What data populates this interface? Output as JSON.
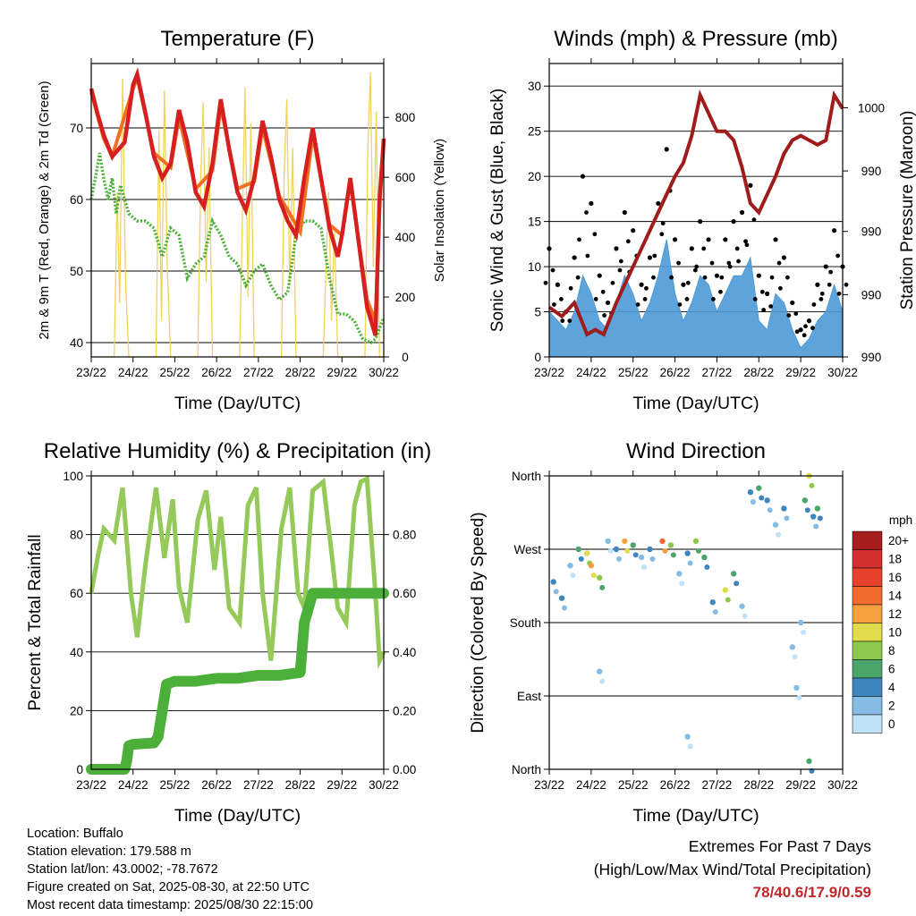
{
  "x_ticks": [
    "23/22",
    "24/22",
    "25/22",
    "26/22",
    "27/22",
    "28/22",
    "29/22",
    "30/22"
  ],
  "x_label": "Time (Day/UTC)",
  "chart_data": [
    {
      "id": "temperature",
      "type": "line",
      "title": "Temperature (F)",
      "ylabel": "2m & 9m T (Red, Orange) & 2m Td (Green)",
      "ylabel_right": "Solar Insolation (Yellow)",
      "ylim": [
        38,
        79
      ],
      "yticks": [
        40,
        50,
        60,
        70
      ],
      "ylim_right": [
        0,
        980
      ],
      "yticks_right": [
        0,
        200,
        400,
        600,
        800
      ],
      "series": [
        {
          "key": "T2m",
          "color": "#d62020",
          "x": [
            0,
            0.15,
            0.3,
            0.5,
            0.8,
            1.0,
            1.1,
            1.3,
            1.5,
            1.7,
            1.9,
            2.1,
            2.3,
            2.5,
            2.7,
            2.9,
            3.1,
            3.3,
            3.5,
            3.7,
            3.9,
            4.1,
            4.3,
            4.5,
            4.7,
            4.9,
            5.1,
            5.3,
            5.5,
            5.7,
            5.9,
            6.0,
            6.2,
            6.4,
            6.6,
            6.8,
            6.9,
            7.0
          ],
          "y": [
            75.5,
            72,
            69,
            66,
            68,
            76,
            77.5,
            72,
            66,
            63,
            65,
            72.5,
            68,
            61,
            59,
            65,
            74,
            67,
            61,
            58.5,
            63,
            71,
            66,
            60,
            57,
            55,
            63,
            70,
            63,
            56,
            52,
            55,
            63,
            54,
            45,
            41,
            60,
            68.5
          ]
        },
        {
          "key": "T9m",
          "color": "#f07020",
          "x": [
            0,
            0.3,
            0.5,
            1.0,
            1.1,
            1.5,
            1.9,
            2.1,
            2.5,
            2.9,
            3.1,
            3.5,
            3.9,
            4.1,
            4.5,
            5.0,
            5.3,
            5.7,
            6.0,
            6.2,
            6.6,
            6.8,
            6.9,
            7.0
          ],
          "y": [
            75,
            68.5,
            66,
            75.5,
            77,
            66.5,
            64.5,
            71.5,
            61.5,
            64,
            73,
            61.5,
            62.5,
            70,
            60.5,
            55.5,
            69,
            56.5,
            55,
            62.5,
            46,
            43,
            59,
            68
          ]
        },
        {
          "key": "Td2m",
          "color": "#4caf3a",
          "x": [
            0,
            0.1,
            0.2,
            0.3,
            0.4,
            0.5,
            0.6,
            0.7,
            0.9,
            1.1,
            1.3,
            1.5,
            1.7,
            1.9,
            2.1,
            2.3,
            2.5,
            2.7,
            2.9,
            3.1,
            3.3,
            3.5,
            3.7,
            3.9,
            4.1,
            4.3,
            4.5,
            4.7,
            4.9,
            5.1,
            5.3,
            5.5,
            5.7,
            5.9,
            6.1,
            6.3,
            6.5,
            6.7,
            6.8,
            6.9,
            7.0
          ],
          "y": [
            60,
            63,
            66.5,
            63,
            60,
            63,
            58,
            62,
            58,
            57,
            57,
            56,
            52,
            56,
            55,
            49,
            51,
            52,
            57,
            55,
            52,
            51,
            48,
            50,
            51,
            48,
            46,
            47,
            55,
            57,
            57,
            56,
            49,
            44,
            44,
            43,
            40.5,
            40,
            40.5,
            42,
            43.5
          ]
        },
        {
          "key": "solar",
          "axis": "right",
          "color": "#f2d35a",
          "x": [
            0,
            0.55,
            0.62,
            0.68,
            0.75,
            0.82,
            0.9,
            1.55,
            1.62,
            1.68,
            1.75,
            1.82,
            1.9,
            2.55,
            2.62,
            2.68,
            2.75,
            2.82,
            2.9,
            3.55,
            3.62,
            3.68,
            3.75,
            3.82,
            3.9,
            4.55,
            4.62,
            4.68,
            4.75,
            4.82,
            4.9,
            5.55,
            5.62,
            5.68,
            5.75,
            5.82,
            5.9,
            6.55,
            6.62,
            6.68,
            6.75,
            6.82,
            6.9,
            7.0
          ],
          "y": [
            0,
            0,
            550,
            180,
            930,
            260,
            0,
            0,
            760,
            120,
            890,
            300,
            0,
            0,
            600,
            850,
            250,
            700,
            0,
            0,
            480,
            900,
            200,
            780,
            0,
            0,
            620,
            860,
            240,
            700,
            0,
            0,
            300,
            550,
            120,
            420,
            0,
            0,
            700,
            950,
            300,
            820,
            0,
            0
          ]
        }
      ]
    },
    {
      "id": "winds",
      "type": "scatter",
      "title": "Winds (mph) & Pressure (mb)",
      "ylabel": "Sonic Wind & Gust (Blue, Black)",
      "ylabel_right": "Station Pressure (Maroon)",
      "ylim": [
        0,
        32.5
      ],
      "yticks": [
        0,
        5,
        10,
        15,
        20,
        25,
        30
      ],
      "yticks_right": [
        "990",
        "990",
        "990",
        "990",
        "1000",
        "1000"
      ],
      "series": [
        {
          "key": "gust",
          "color": "#000000",
          "x": [
            0,
            0.2,
            0.4,
            0.6,
            0.8,
            1.0,
            1.2,
            1.4,
            1.6,
            1.8,
            2.0,
            2.2,
            2.4,
            2.6,
            2.8,
            3.0,
            3.2,
            3.4,
            3.6,
            3.8,
            4.0,
            4.2,
            4.4,
            4.6,
            4.8,
            5.0,
            5.2,
            5.4,
            5.6,
            5.8,
            6.0,
            6.2,
            6.4,
            6.6,
            6.8,
            7.0
          ],
          "y": [
            12,
            8,
            5,
            11,
            20,
            17,
            9,
            6,
            12,
            16,
            14,
            8,
            11,
            17,
            23,
            13,
            8,
            12,
            15,
            13,
            9,
            13,
            15,
            16,
            19,
            9,
            7,
            13,
            11,
            6,
            3,
            4,
            8,
            10,
            14,
            10
          ]
        },
        {
          "key": "wind",
          "color": "#4d9ad6",
          "x": [
            0,
            0.2,
            0.4,
            0.6,
            0.8,
            1.0,
            1.2,
            1.4,
            1.6,
            1.8,
            2.0,
            2.2,
            2.4,
            2.6,
            2.8,
            3.0,
            3.2,
            3.4,
            3.6,
            3.8,
            4.0,
            4.2,
            4.4,
            4.6,
            4.8,
            5.0,
            5.2,
            5.4,
            5.6,
            5.8,
            6.0,
            6.2,
            6.4,
            6.6,
            6.8,
            7.0
          ],
          "y": [
            5,
            4,
            3,
            5,
            9,
            7,
            4,
            3,
            6,
            9,
            7,
            4,
            6,
            9,
            13,
            7,
            4,
            6,
            9,
            8,
            5,
            7,
            9,
            9,
            11,
            4,
            3,
            7,
            6,
            3,
            1,
            2,
            4,
            5,
            8,
            5
          ]
        },
        {
          "key": "pressure",
          "color": "#a01c1c",
          "x": [
            0,
            0.3,
            0.6,
            0.9,
            1.1,
            1.3,
            1.6,
            1.9,
            2.3,
            2.7,
            3.0,
            3.2,
            3.4,
            3.6,
            3.8,
            4.0,
            4.2,
            4.4,
            4.6,
            4.8,
            5.0,
            5.2,
            5.4,
            5.6,
            5.8,
            6.0,
            6.2,
            6.4,
            6.6,
            6.8,
            7.0
          ],
          "y": [
            5.5,
            4.5,
            6,
            2.5,
            3,
            2.5,
            6,
            9,
            13,
            17,
            20,
            21.5,
            24.5,
            29,
            27,
            25,
            25,
            24,
            21,
            17,
            16,
            18,
            20,
            22.5,
            24,
            24.5,
            24,
            23.5,
            24,
            29,
            27.5
          ]
        }
      ]
    },
    {
      "id": "humidity",
      "type": "line",
      "title": "Relative Humidity (%) & Precipitation (in)",
      "ylabel": "Percent & Total Rainfall",
      "ylim": [
        0,
        100
      ],
      "yticks": [
        0,
        20,
        40,
        60,
        80,
        100
      ],
      "yticks_right": [
        "0.00",
        "0.20",
        "0.40",
        "0.60",
        "0.80"
      ],
      "series": [
        {
          "key": "rh",
          "color": "#95c95a",
          "x": [
            0,
            0.15,
            0.3,
            0.55,
            0.75,
            0.95,
            1.1,
            1.3,
            1.55,
            1.75,
            1.95,
            2.1,
            2.3,
            2.55,
            2.75,
            2.95,
            3.1,
            3.3,
            3.55,
            3.75,
            3.95,
            4.1,
            4.3,
            4.55,
            4.75,
            4.95,
            5.1,
            5.3,
            5.55,
            5.7,
            5.9,
            6.1,
            6.3,
            6.45,
            6.6,
            6.8,
            6.9,
            7.0
          ],
          "y": [
            60,
            72,
            82,
            78,
            96,
            60,
            45,
            70,
            96,
            72,
            92,
            62,
            50,
            85,
            95,
            68,
            86,
            55,
            50,
            90,
            96,
            60,
            37,
            82,
            96,
            60,
            55,
            95,
            98,
            80,
            55,
            50,
            90,
            98,
            99,
            60,
            37,
            40
          ]
        },
        {
          "key": "precip",
          "color": "#4caf3a",
          "x": [
            0,
            0.8,
            0.85,
            0.9,
            1.0,
            1.5,
            1.6,
            1.7,
            1.8,
            2.0,
            2.5,
            3.0,
            3.5,
            4.0,
            4.5,
            5.0,
            5.1,
            5.2,
            5.3,
            5.5,
            6.0,
            6.5,
            7.0
          ],
          "y": [
            0,
            0,
            0.03,
            0.08,
            0.085,
            0.09,
            0.11,
            0.2,
            0.29,
            0.3,
            0.3,
            0.31,
            0.31,
            0.32,
            0.32,
            0.33,
            0.5,
            0.55,
            0.6,
            0.6,
            0.6,
            0.6,
            0.6
          ]
        }
      ]
    },
    {
      "id": "direction",
      "type": "scatter",
      "title": "Wind Direction",
      "ylabel": "Direction (Colored By Speed)",
      "ylim": [
        0,
        360
      ],
      "ycats": [
        "North",
        "East",
        "South",
        "West",
        "North"
      ],
      "legend": {
        "title": "mph",
        "labels": [
          "20+",
          "18",
          "16",
          "14",
          "12",
          "10",
          "8",
          "6",
          "4",
          "2",
          "0"
        ],
        "colors": [
          "#a51d1d",
          "#d32f2f",
          "#e6422b",
          "#f06b2e",
          "#f7a13e",
          "#e0dc4b",
          "#8cc84b",
          "#4aa56a",
          "#3f86c1",
          "#86bce4",
          "#bee3f6"
        ]
      },
      "points": [
        {
          "x": 0.1,
          "y": 230,
          "s": 3
        },
        {
          "x": 0.3,
          "y": 210,
          "s": 4
        },
        {
          "x": 0.5,
          "y": 250,
          "s": 2
        },
        {
          "x": 0.7,
          "y": 270,
          "s": 6
        },
        {
          "x": 0.9,
          "y": 265,
          "s": 10
        },
        {
          "x": 1.0,
          "y": 250,
          "s": 12
        },
        {
          "x": 1.2,
          "y": 235,
          "s": 8
        },
        {
          "x": 1.4,
          "y": 280,
          "s": 2
        },
        {
          "x": 1.6,
          "y": 270,
          "s": 4
        },
        {
          "x": 1.8,
          "y": 280,
          "s": 12
        },
        {
          "x": 2.0,
          "y": 275,
          "s": 6
        },
        {
          "x": 2.2,
          "y": 260,
          "s": 2
        },
        {
          "x": 2.4,
          "y": 270,
          "s": 4
        },
        {
          "x": 2.7,
          "y": 280,
          "s": 14
        },
        {
          "x": 2.9,
          "y": 275,
          "s": 8
        },
        {
          "x": 3.1,
          "y": 240,
          "s": 1
        },
        {
          "x": 3.3,
          "y": 265,
          "s": 4
        },
        {
          "x": 3.5,
          "y": 280,
          "s": 8
        },
        {
          "x": 3.7,
          "y": 260,
          "s": 6
        },
        {
          "x": 3.9,
          "y": 205,
          "s": 4
        },
        {
          "x": 4.2,
          "y": 220,
          "s": 10
        },
        {
          "x": 4.4,
          "y": 240,
          "s": 6
        },
        {
          "x": 4.6,
          "y": 200,
          "s": 2
        },
        {
          "x": 4.8,
          "y": 340,
          "s": 4
        },
        {
          "x": 5.0,
          "y": 345,
          "s": 6
        },
        {
          "x": 5.2,
          "y": 330,
          "s": 4
        },
        {
          "x": 5.4,
          "y": 300,
          "s": 2
        },
        {
          "x": 5.6,
          "y": 320,
          "s": 4
        },
        {
          "x": 5.8,
          "y": 150,
          "s": 1
        },
        {
          "x": 5.9,
          "y": 100,
          "s": 1
        },
        {
          "x": 6.0,
          "y": 180,
          "s": 2
        },
        {
          "x": 6.1,
          "y": 330,
          "s": 6
        },
        {
          "x": 6.2,
          "y": 360,
          "s": 10
        },
        {
          "x": 6.3,
          "y": 310,
          "s": 4
        },
        {
          "x": 6.4,
          "y": 320,
          "s": 6
        },
        {
          "x": 3.3,
          "y": 40,
          "s": 1
        },
        {
          "x": 1.2,
          "y": 120,
          "s": 1
        },
        {
          "x": 6.2,
          "y": 10,
          "s": 6
        }
      ]
    }
  ],
  "info": {
    "location": "Location: Buffalo",
    "elevation": "Station elevation: 179.588 m",
    "latlon": "Station lat/lon: 43.0002; -78.7672",
    "created": "Figure created on Sat, 2025-08-30, at 22:50 UTC",
    "recent": "Most recent data timestamp: 2025/08/30 22:15:00"
  },
  "extremes": {
    "line1": "Extremes For Past 7 Days",
    "line2": "(High/Low/Max Wind/Total Precipitation)",
    "values": "78/40.6/17.9/0.59",
    "values_color": "#c0262a"
  }
}
